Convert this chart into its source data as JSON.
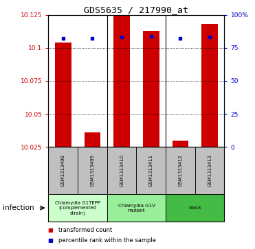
{
  "title": "GDS5635 / 217990_at",
  "samples": [
    "GSM1313408",
    "GSM1313409",
    "GSM1313410",
    "GSM1313411",
    "GSM1313412",
    "GSM1313413"
  ],
  "transformed_counts": [
    10.104,
    10.036,
    10.125,
    10.113,
    10.03,
    10.118
  ],
  "percentile_ranks": [
    82,
    82,
    83,
    84,
    82,
    83
  ],
  "ylim_left": [
    10.025,
    10.125
  ],
  "yticks_left": [
    10.025,
    10.05,
    10.075,
    10.1,
    10.125
  ],
  "ytick_labels_left": [
    "10.025",
    "10.05",
    "10.075",
    "10.1",
    "10.125"
  ],
  "ylim_right": [
    0,
    100
  ],
  "yticks_right": [
    0,
    25,
    50,
    75,
    100
  ],
  "ytick_labels_right": [
    "0",
    "25",
    "50",
    "75",
    "100%"
  ],
  "bar_color": "#cc0000",
  "dot_color": "#0000cc",
  "groups": [
    {
      "label": "Chlamydia G1TEPP\n(complemented\nstrain)",
      "indices": [
        0,
        1
      ],
      "color": "#ccffcc"
    },
    {
      "label": "Chlamydia G1V\nmutant",
      "indices": [
        2,
        3
      ],
      "color": "#99ee99"
    },
    {
      "label": "mock",
      "indices": [
        4,
        5
      ],
      "color": "#44bb44"
    }
  ],
  "infection_label": "infection",
  "legend_red": "transformed count",
  "legend_blue": "percentile rank within the sample",
  "left_tick_color": "#cc0000",
  "right_tick_color": "#0000cc",
  "sample_box_color": "#c0c0c0",
  "plot_bg": "#ffffff"
}
